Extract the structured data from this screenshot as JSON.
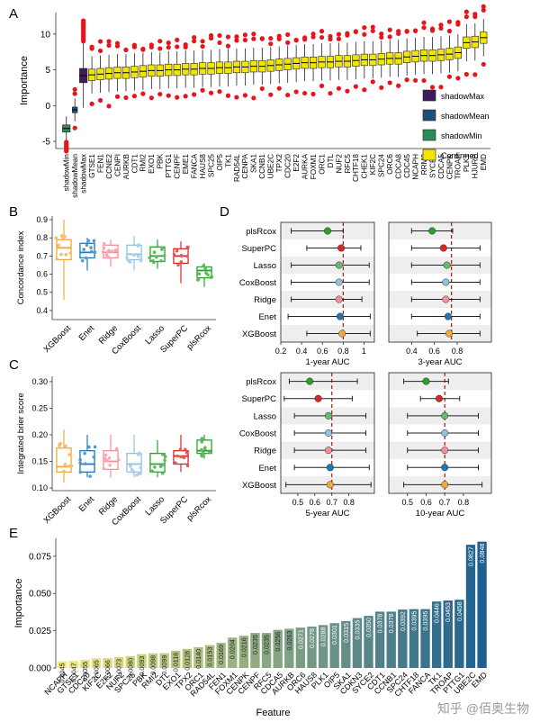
{
  "watermark": "知乎 @佰奥生物",
  "chart_data": [
    {
      "panel": "A",
      "type": "box",
      "ylabel": "Importance",
      "xlabel": "",
      "ylim": [
        -6,
        13
      ],
      "yticks": [
        -5,
        0,
        5,
        10
      ],
      "legend": {
        "placement": "right",
        "entries": [
          "shadowMax",
          "shadowMean",
          "shadowMin",
          "Confirmed"
        ]
      },
      "colors": {
        "shadowMax": "#3f1d5c",
        "shadowMean": "#1f4e79",
        "shadowMin": "#2e8b57",
        "Confirmed": "#f2e600",
        "outlier": "#e8141b"
      },
      "features": [
        "shadowMin",
        "shadowMean",
        "shadowMax",
        "GTSE1",
        "FEN1",
        "CCNE2",
        "CENPI",
        "AURKB",
        "CDT1",
        "RMI2",
        "EXO1",
        "PBK",
        "PTTG1",
        "CENPF",
        "EME1",
        "FANCA",
        "HAUS8",
        "SPC25",
        "OIP5",
        "TK1",
        "RAD54L",
        "CENPA",
        "SKA1",
        "CCNB1",
        "UBE2C",
        "TPX2",
        "CDC20",
        "E2F2",
        "AURKA",
        "FOXM1",
        "ORC1",
        "DTL",
        "NUF2",
        "RFC5",
        "CHTF18",
        "CHEK1",
        "KIF2C",
        "SPC24",
        "ORC6",
        "CDCA8",
        "CDC45",
        "NCAPH",
        "RRM2",
        "SYCE2",
        "CDCA5",
        "CENPK",
        "TROAP",
        "PLK1",
        "HJURP",
        "EMD"
      ],
      "medians": [
        -3.2,
        -0.6,
        4.2,
        4.3,
        4.4,
        4.5,
        4.6,
        4.6,
        4.7,
        4.8,
        4.9,
        4.9,
        5.0,
        5.0,
        5.1,
        5.1,
        5.2,
        5.2,
        5.3,
        5.3,
        5.4,
        5.4,
        5.5,
        5.5,
        5.6,
        5.7,
        5.8,
        5.9,
        6.0,
        6.0,
        6.1,
        6.1,
        6.2,
        6.2,
        6.3,
        6.4,
        6.4,
        6.5,
        6.6,
        6.6,
        6.8,
        6.9,
        7.0,
        7.0,
        7.1,
        7.2,
        7.4,
        8.8,
        8.9,
        9.5
      ]
    },
    {
      "panel": "B",
      "type": "box",
      "ylabel": "Concordance index",
      "categories": [
        "XGBoost",
        "Enet",
        "Ridge",
        "CoxBoost",
        "Lasso",
        "SuperPC",
        "plsRcox"
      ],
      "colors": [
        "#f2a93b",
        "#1f77b4",
        "#f28e9a",
        "#8fc1e3",
        "#2ca02c",
        "#d62728",
        "#2ca02c"
      ],
      "ylim": [
        0.35,
        0.92
      ],
      "yticks": [
        0.4,
        0.5,
        0.6,
        0.7,
        0.8,
        0.9
      ],
      "boxes": [
        {
          "min": 0.46,
          "q1": 0.68,
          "median": 0.745,
          "q3": 0.79,
          "max": 0.9
        },
        {
          "min": 0.62,
          "q1": 0.69,
          "median": 0.72,
          "q3": 0.77,
          "max": 0.8
        },
        {
          "min": 0.64,
          "q1": 0.69,
          "median": 0.72,
          "q3": 0.76,
          "max": 0.79
        },
        {
          "min": 0.62,
          "q1": 0.68,
          "median": 0.71,
          "q3": 0.76,
          "max": 0.81
        },
        {
          "min": 0.63,
          "q1": 0.67,
          "median": 0.7,
          "q3": 0.75,
          "max": 0.79
        },
        {
          "min": 0.55,
          "q1": 0.66,
          "median": 0.7,
          "q3": 0.74,
          "max": 0.78
        },
        {
          "min": 0.53,
          "q1": 0.58,
          "median": 0.62,
          "q3": 0.64,
          "max": 0.66
        }
      ]
    },
    {
      "panel": "C",
      "type": "box",
      "ylabel": "Integrated brier score",
      "categories": [
        "XGBoost",
        "Enet",
        "Ridge",
        "CoxBoost",
        "Lasso",
        "SuperPC",
        "plsRcox"
      ],
      "colors": [
        "#f2a93b",
        "#1f77b4",
        "#f28e9a",
        "#8fc1e3",
        "#2ca02c",
        "#d62728",
        "#2ca02c"
      ],
      "ylim": [
        0.095,
        0.31
      ],
      "yticks": [
        0.1,
        0.15,
        0.2,
        0.25,
        0.3
      ],
      "boxes": [
        {
          "min": 0.11,
          "q1": 0.13,
          "median": 0.14,
          "q3": 0.175,
          "max": 0.21
        },
        {
          "min": 0.12,
          "q1": 0.13,
          "median": 0.145,
          "q3": 0.17,
          "max": 0.2
        },
        {
          "min": 0.12,
          "q1": 0.135,
          "median": 0.15,
          "q3": 0.17,
          "max": 0.2
        },
        {
          "min": 0.12,
          "q1": 0.13,
          "median": 0.145,
          "q3": 0.165,
          "max": 0.2
        },
        {
          "min": 0.12,
          "q1": 0.13,
          "median": 0.145,
          "q3": 0.165,
          "max": 0.19
        },
        {
          "min": 0.13,
          "q1": 0.145,
          "median": 0.16,
          "q3": 0.17,
          "max": 0.2
        },
        {
          "min": 0.155,
          "q1": 0.165,
          "median": 0.17,
          "q3": 0.19,
          "max": 0.2
        }
      ]
    },
    {
      "panel": "D",
      "type": "forest",
      "models": [
        "plsRcox",
        "SuperPC",
        "Lasso",
        "CoxBoost",
        "Ridge",
        "Enet",
        "XGBoost"
      ],
      "colors": [
        "#2ca02c",
        "#d62728",
        "#66bb6a",
        "#8fc1e3",
        "#f28e9a",
        "#1f77b4",
        "#f2a93b"
      ],
      "subplots": [
        {
          "xlabel": "1-year AUC",
          "xlim": [
            0.2,
            1.1
          ],
          "xticks": [
            0.2,
            0.4,
            0.6,
            0.8,
            1.0
          ],
          "ref": 0.8,
          "points": [
            {
              "est": 0.65,
              "lo": 0.3,
              "hi": 0.8
            },
            {
              "est": 0.78,
              "lo": 0.45,
              "hi": 0.97
            },
            {
              "est": 0.76,
              "lo": 0.3,
              "hi": 1.05
            },
            {
              "est": 0.76,
              "lo": 0.3,
              "hi": 1.05
            },
            {
              "est": 0.76,
              "lo": 0.3,
              "hi": 0.98
            },
            {
              "est": 0.77,
              "lo": 0.27,
              "hi": 1.06
            },
            {
              "est": 0.79,
              "lo": 0.45,
              "hi": 1.06
            }
          ]
        },
        {
          "xlabel": "3-year AUC",
          "xlim": [
            0.2,
            1.1
          ],
          "xticks": [
            0.4,
            0.6,
            0.8
          ],
          "ref": 0.75,
          "points": [
            {
              "est": 0.58,
              "lo": 0.4,
              "hi": 0.76
            },
            {
              "est": 0.68,
              "lo": 0.4,
              "hi": 1.0
            },
            {
              "est": 0.71,
              "lo": 0.4,
              "hi": 1.0
            },
            {
              "est": 0.7,
              "lo": 0.4,
              "hi": 1.0
            },
            {
              "est": 0.7,
              "lo": 0.4,
              "hi": 1.0
            },
            {
              "est": 0.72,
              "lo": 0.4,
              "hi": 1.0
            },
            {
              "est": 0.73,
              "lo": 0.45,
              "hi": 1.0
            }
          ]
        },
        {
          "xlabel": "5-year AUC",
          "xlim": [
            0.4,
            0.95
          ],
          "xticks": [
            0.5,
            0.6,
            0.7,
            0.8
          ],
          "ref": 0.7,
          "points": [
            {
              "est": 0.57,
              "lo": 0.45,
              "hi": 0.85
            },
            {
              "est": 0.62,
              "lo": 0.42,
              "hi": 0.82
            },
            {
              "est": 0.68,
              "lo": 0.48,
              "hi": 0.9
            },
            {
              "est": 0.68,
              "lo": 0.48,
              "hi": 0.9
            },
            {
              "est": 0.68,
              "lo": 0.48,
              "hi": 0.9
            },
            {
              "est": 0.69,
              "lo": 0.48,
              "hi": 0.92
            },
            {
              "est": 0.69,
              "lo": 0.43,
              "hi": 0.93
            }
          ]
        },
        {
          "xlabel": "10-year AUC",
          "xlim": [
            0.4,
            0.95
          ],
          "xticks": [
            0.5,
            0.6,
            0.7,
            0.8
          ],
          "ref": 0.7,
          "points": [
            {
              "est": 0.6,
              "lo": 0.48,
              "hi": 0.72
            },
            {
              "est": 0.67,
              "lo": 0.57,
              "hi": 0.78
            },
            {
              "est": 0.7,
              "lo": 0.5,
              "hi": 0.88
            },
            {
              "est": 0.7,
              "lo": 0.5,
              "hi": 0.88
            },
            {
              "est": 0.7,
              "lo": 0.5,
              "hi": 0.88
            },
            {
              "est": 0.7,
              "lo": 0.5,
              "hi": 0.88
            },
            {
              "est": 0.7,
              "lo": 0.48,
              "hi": 0.9
            }
          ]
        }
      ]
    },
    {
      "panel": "E",
      "type": "bar",
      "xlabel": "Feature",
      "ylabel": "Importance",
      "ylim": [
        0,
        0.087
      ],
      "yticks": [
        0.0,
        0.025,
        0.05,
        0.075
      ],
      "yticklabels": [
        "0.000",
        "0.025",
        "0.050",
        "0.075"
      ],
      "categories": [
        "NCAPH",
        "GTSE1",
        "CDC20",
        "KIF2C",
        "E2F2",
        "NUF2",
        "SPC25",
        "PBK",
        "RMI2",
        "DTL",
        "EXO1",
        "TPX2",
        "ORC1",
        "RAD54L",
        "FEN1",
        "FOXM1",
        "CENPK",
        "CENPF",
        "RFC5",
        "CDCA5",
        "AURKB",
        "ORC6",
        "HAUS8",
        "PLK1",
        "OIP5",
        "SKA1",
        "CDKN3",
        "SYCE2",
        "CDT1",
        "CCNB1",
        "SPC24",
        "CHTF18",
        "FANCA",
        "TK1",
        "TROAP",
        "PTTG1",
        "UBE2C",
        "EMD"
      ],
      "values": [
        0.0045,
        0.0047,
        0.0055,
        0.0065,
        0.0066,
        0.0073,
        0.008,
        0.0093,
        0.0098,
        0.0099,
        0.0116,
        0.0128,
        0.014,
        0.0153,
        0.0169,
        0.0204,
        0.0216,
        0.0235,
        0.0235,
        0.0256,
        0.0263,
        0.0271,
        0.0278,
        0.0288,
        0.0301,
        0.0315,
        0.0335,
        0.035,
        0.0378,
        0.0378,
        0.0392,
        0.0395,
        0.0395,
        0.0446,
        0.0453,
        0.0458,
        0.0827,
        0.0848
      ],
      "value_labels": [
        "0.0045",
        "0.0047",
        "0.0055",
        "0.0065",
        "0.0066",
        "0.0073",
        "0.0080",
        "0.0093",
        "0.0098",
        "0.0099",
        "0.0116",
        "0.0128",
        "0.0140",
        "0.0153",
        "0.0169",
        "0.0204",
        "0.0216",
        "0.0235",
        "0.0235",
        "0.0256",
        "0.0263",
        "0.0271",
        "0.0278",
        "0.0288",
        "0.0301",
        "0.0315",
        "0.0335",
        "0.0350",
        "0.0378",
        "0.0378",
        "0.0392",
        "0.0395",
        "0.0395",
        "0.0446",
        "0.0453",
        "0.0458",
        "0.0827",
        "0.0848"
      ]
    }
  ]
}
